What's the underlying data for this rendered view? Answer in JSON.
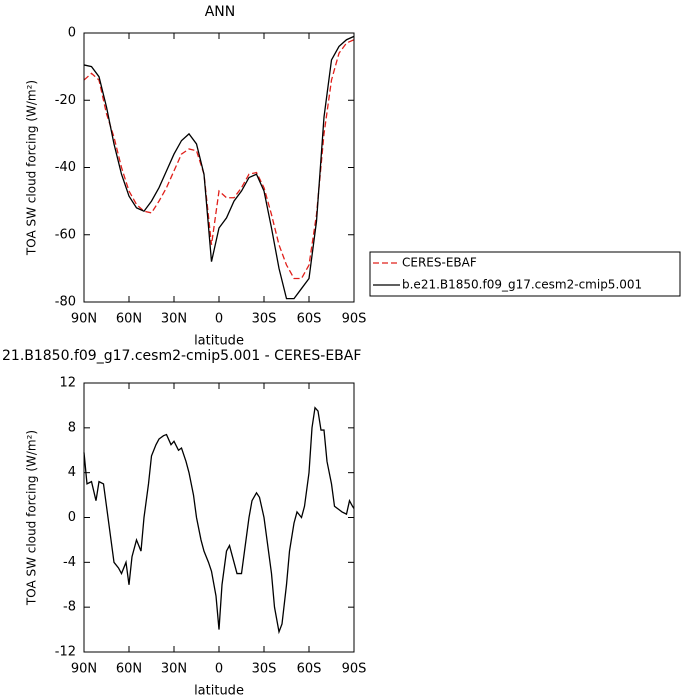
{
  "chart_data": [
    {
      "type": "line",
      "title": "ANN",
      "xlabel": "latitude",
      "ylabel": "TOA SW cloud forcing (W/m²)",
      "x": [
        90,
        85,
        80,
        75,
        70,
        65,
        60,
        55,
        50,
        45,
        40,
        35,
        30,
        25,
        20,
        15,
        10,
        5,
        0,
        -5,
        -10,
        -15,
        -20,
        -25,
        -30,
        -35,
        -40,
        -45,
        -50,
        -55,
        -60,
        -65,
        -70,
        -75,
        -80,
        -85,
        -90
      ],
      "series": [
        {
          "name": "CERES-EBAF",
          "color": "#e0201b",
          "dash": true,
          "values": [
            -14,
            -12,
            -14,
            -24,
            -31,
            -40,
            -47,
            -51,
            -53,
            -53.5,
            -50,
            -46,
            -41,
            -36,
            -34.5,
            -35,
            -42,
            -63,
            -47,
            -49,
            -49,
            -46,
            -42,
            -41.5,
            -46,
            -54,
            -63,
            -69,
            -73,
            -73,
            -69,
            -54,
            -30,
            -14,
            -6,
            -3,
            -2
          ]
        },
        {
          "name": "b.e21.B1850.f09_g17.cesm2-cmip5.001",
          "color": "#000000",
          "dash": false,
          "values": [
            -9.5,
            -10,
            -13,
            -22,
            -33,
            -42,
            -48.5,
            -52,
            -53,
            -50,
            -46,
            -41,
            -36,
            -32,
            -30,
            -33,
            -42,
            -68,
            -58,
            -55,
            -50,
            -47,
            -43,
            -42,
            -47,
            -58,
            -70,
            -79,
            -79,
            -76,
            -73,
            -56,
            -25,
            -8,
            -4,
            -2,
            -1
          ]
        }
      ],
      "xlim": [
        90,
        -90
      ],
      "xticks": [
        {
          "value": 90,
          "label": "90N"
        },
        {
          "value": 60,
          "label": "60N"
        },
        {
          "value": 30,
          "label": "30N"
        },
        0,
        {
          "value": -30,
          "label": "30S"
        },
        {
          "value": -60,
          "label": "60S"
        },
        {
          "value": -90,
          "label": "90S"
        }
      ],
      "ylim": [
        -80,
        0
      ],
      "yticks": [
        0,
        -20,
        -40,
        -60,
        -80
      ]
    },
    {
      "type": "line",
      "title": "21.B1850.f09_g17.cesm2-cmip5.001 - CERES-EBAF",
      "xlabel": "latitude",
      "ylabel": "TOA SW cloud forcing (W/m²)",
      "x": [
        90,
        88,
        85,
        82,
        80,
        77,
        75,
        72,
        70,
        67,
        65,
        62,
        60,
        58,
        55,
        52,
        50,
        47,
        45,
        42,
        40,
        37,
        35,
        32,
        30,
        27,
        25,
        22,
        20,
        17,
        15,
        12,
        10,
        7,
        5,
        2,
        0,
        -2,
        -5,
        -7,
        -10,
        -12,
        -15,
        -17,
        -20,
        -22,
        -25,
        -27,
        -30,
        -32,
        -35,
        -37,
        -40,
        -42,
        -45,
        -47,
        -50,
        -52,
        -55,
        -57,
        -60,
        -62,
        -64,
        -66,
        -68,
        -70,
        -72,
        -75,
        -77,
        -80,
        -82,
        -85,
        -87,
        -89,
        -90
      ],
      "series": [
        {
          "name": null,
          "color": "#000000",
          "dash": false,
          "values": [
            5.8,
            3,
            3.2,
            1.5,
            3.2,
            3,
            1,
            -2,
            -4,
            -4.5,
            -5,
            -4,
            -6,
            -3.5,
            -2,
            -3,
            0,
            3,
            5.5,
            6.5,
            7,
            7.3,
            7.4,
            6.5,
            6.8,
            6,
            6.2,
            5,
            4,
            2,
            0,
            -2,
            -3,
            -4,
            -4.8,
            -7,
            -10,
            -6,
            -3,
            -2.5,
            -4,
            -5,
            -5,
            -3,
            0,
            1.5,
            2.2,
            1.8,
            0,
            -2,
            -5,
            -8,
            -10.2,
            -9.5,
            -6,
            -3,
            -0.5,
            0.5,
            0,
            1,
            4,
            8,
            9.8,
            9.5,
            7.8,
            7.8,
            5,
            3,
            1,
            0.7,
            0.5,
            0.3,
            1.5,
            1,
            0.8
          ]
        }
      ],
      "xlim": [
        90,
        -90
      ],
      "xticks": [
        {
          "value": 90,
          "label": "90N"
        },
        {
          "value": 60,
          "label": "60N"
        },
        {
          "value": 30,
          "label": "30N"
        },
        0,
        {
          "value": -30,
          "label": "30S"
        },
        {
          "value": -60,
          "label": "60S"
        },
        {
          "value": -90,
          "label": "90S"
        }
      ],
      "ylim": [
        -12,
        12
      ],
      "yticks": [
        12,
        8,
        4,
        0,
        -4,
        -8,
        -12
      ]
    }
  ]
}
